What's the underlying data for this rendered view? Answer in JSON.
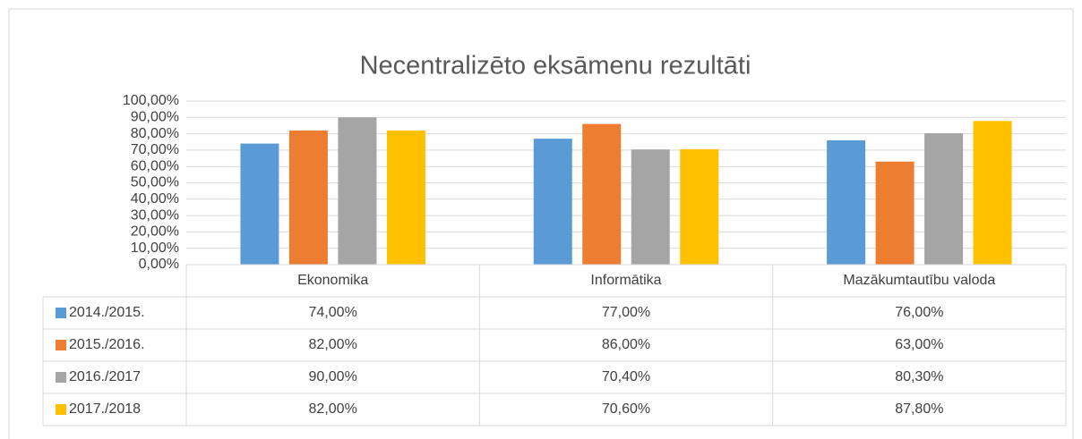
{
  "chart_data": {
    "type": "bar",
    "title": "Necentralizēto eksāmenu rezultāti",
    "categories": [
      "Ekonomika",
      "Informātika",
      "Mazākumtautību valoda"
    ],
    "series": [
      {
        "name": "2014./2015.",
        "color": "#5b9bd5",
        "values": [
          74,
          77,
          76
        ],
        "value_labels": [
          "74,00%",
          "77,00%",
          "76,00%"
        ]
      },
      {
        "name": "2015./2016.",
        "color": "#ed7d31",
        "values": [
          82,
          86,
          63
        ],
        "value_labels": [
          "82,00%",
          "86,00%",
          "63,00%"
        ]
      },
      {
        "name": "2016./2017",
        "color": "#a5a5a5",
        "values": [
          90,
          70.4,
          80.3
        ],
        "value_labels": [
          "90,00%",
          "70,40%",
          "80,30%"
        ]
      },
      {
        "name": "2017./2018",
        "color": "#ffc000",
        "values": [
          82,
          70.6,
          87.8
        ],
        "value_labels": [
          "82,00%",
          "70,60%",
          "87,80%"
        ]
      }
    ],
    "ylim": [
      0,
      100
    ],
    "yticks": [
      {
        "value": 0,
        "label": "0,00%"
      },
      {
        "value": 10,
        "label": "10,00%"
      },
      {
        "value": 20,
        "label": "20,00%"
      },
      {
        "value": 30,
        "label": "30,00%"
      },
      {
        "value": 40,
        "label": "40,00%"
      },
      {
        "value": 50,
        "label": "50,00%"
      },
      {
        "value": 60,
        "label": "60,00%"
      },
      {
        "value": 70,
        "label": "70,00%"
      },
      {
        "value": 80,
        "label": "80,00%"
      },
      {
        "value": 90,
        "label": "90,00%"
      },
      {
        "value": 100,
        "label": "100,00%"
      }
    ],
    "grid": true
  }
}
